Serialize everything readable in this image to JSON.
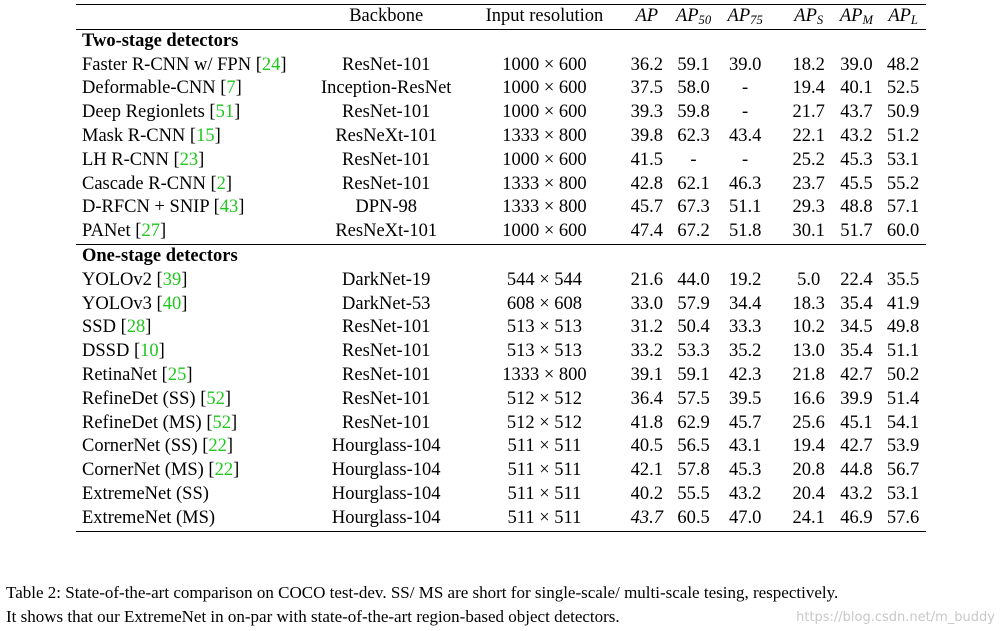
{
  "table": {
    "headers": {
      "backbone": "Backbone",
      "input_resolution": "Input resolution",
      "ap_base": "AP",
      "ap50_sub": "50",
      "ap75_sub": "75",
      "aps_sub": "S",
      "apm_sub": "M",
      "apl_sub": "L"
    },
    "sections": [
      {
        "title": "Two-stage detectors",
        "rows": [
          {
            "method": "Faster R-CNN w/ FPN",
            "cite": "24",
            "backbone": "ResNet-101",
            "resolution": "1000 × 600",
            "ap": "36.2",
            "ap50": "59.1",
            "ap75": "39.0",
            "aps": "18.2",
            "apm": "39.0",
            "apl": "48.2"
          },
          {
            "method": "Deformable-CNN",
            "cite": "7",
            "backbone": "Inception-ResNet",
            "resolution": "1000 × 600",
            "ap": "37.5",
            "ap50": "58.0",
            "ap75": "-",
            "aps": "19.4",
            "apm": "40.1",
            "apl": "52.5"
          },
          {
            "method": "Deep Regionlets",
            "cite": "51",
            "backbone": "ResNet-101",
            "resolution": "1000 × 600",
            "ap": "39.3",
            "ap50": "59.8",
            "ap75": "-",
            "aps": "21.7",
            "apm": "43.7",
            "apl": "50.9"
          },
          {
            "method": "Mask R-CNN",
            "cite": "15",
            "backbone": "ResNeXt-101",
            "resolution": "1333 × 800",
            "ap": "39.8",
            "ap50": "62.3",
            "ap75": "43.4",
            "aps": "22.1",
            "apm": "43.2",
            "apl": "51.2"
          },
          {
            "method": "LH R-CNN",
            "cite": "23",
            "backbone": "ResNet-101",
            "resolution": "1000 × 600",
            "ap": "41.5",
            "ap50": "-",
            "ap75": "-",
            "aps": "25.2",
            "apm": "45.3",
            "apl": "53.1"
          },
          {
            "method": "Cascade R-CNN",
            "cite": "2",
            "backbone": "ResNet-101",
            "resolution": "1333 × 800",
            "ap": "42.8",
            "ap50": "62.1",
            "ap75": "46.3",
            "aps": "23.7",
            "apm": "45.5",
            "apl": "55.2"
          },
          {
            "method": "D-RFCN + SNIP",
            "cite": "43",
            "backbone": "DPN-98",
            "resolution": "1333 × 800",
            "ap": "45.7",
            "ap50": "67.3",
            "ap75": "51.1",
            "aps": "29.3",
            "apm": "48.8",
            "apl": "57.1"
          },
          {
            "method": "PANet",
            "cite": "27",
            "backbone": "ResNeXt-101",
            "resolution": "1000 × 600",
            "ap": "47.4",
            "ap50": "67.2",
            "ap75": "51.8",
            "aps": "30.1",
            "apm": "51.7",
            "apl": "60.0"
          }
        ]
      },
      {
        "title": "One-stage detectors",
        "rows": [
          {
            "method": "YOLOv2",
            "cite": "39",
            "backbone": "DarkNet-19",
            "resolution": "544 × 544",
            "ap": "21.6",
            "ap50": "44.0",
            "ap75": "19.2",
            "aps": "5.0",
            "apm": "22.4",
            "apl": "35.5"
          },
          {
            "method": "YOLOv3",
            "cite": "40",
            "backbone": "DarkNet-53",
            "resolution": "608 × 608",
            "ap": "33.0",
            "ap50": "57.9",
            "ap75": "34.4",
            "aps": "18.3",
            "apm": "35.4",
            "apl": "41.9"
          },
          {
            "method": "SSD",
            "cite": "28",
            "backbone": "ResNet-101",
            "resolution": "513 × 513",
            "ap": "31.2",
            "ap50": "50.4",
            "ap75": "33.3",
            "aps": "10.2",
            "apm": "34.5",
            "apl": "49.8"
          },
          {
            "method": "DSSD",
            "cite": "10",
            "backbone": "ResNet-101",
            "resolution": "513 × 513",
            "ap": "33.2",
            "ap50": "53.3",
            "ap75": "35.2",
            "aps": "13.0",
            "apm": "35.4",
            "apl": "51.1"
          },
          {
            "method": "RetinaNet",
            "cite": "25",
            "backbone": "ResNet-101",
            "resolution": "1333 × 800",
            "ap": "39.1",
            "ap50": "59.1",
            "ap75": "42.3",
            "aps": "21.8",
            "apm": "42.7",
            "apl": "50.2"
          },
          {
            "method": "RefineDet (SS)",
            "cite": "52",
            "backbone": "ResNet-101",
            "resolution": "512 × 512",
            "ap": "36.4",
            "ap50": "57.5",
            "ap75": "39.5",
            "aps": "16.6",
            "apm": "39.9",
            "apl": "51.4"
          },
          {
            "method": "RefineDet (MS)",
            "cite": "52",
            "backbone": "ResNet-101",
            "resolution": "512 × 512",
            "ap": "41.8",
            "ap50": "62.9",
            "ap75": "45.7",
            "aps": "25.6",
            "apm": "45.1",
            "apl": "54.1"
          },
          {
            "method": "CornerNet (SS)",
            "cite": "22",
            "backbone": "Hourglass-104",
            "resolution": "511 × 511",
            "ap": "40.5",
            "ap50": "56.5",
            "ap75": "43.1",
            "aps": "19.4",
            "apm": "42.7",
            "apl": "53.9"
          },
          {
            "method": "CornerNet (MS)",
            "cite": "22",
            "backbone": "Hourglass-104",
            "resolution": "511 × 511",
            "ap": "42.1",
            "ap50": "57.8",
            "ap75": "45.3",
            "aps": "20.8",
            "apm": "44.8",
            "apl": "56.7"
          },
          {
            "method": "ExtremeNet (SS)",
            "cite": "",
            "backbone": "Hourglass-104",
            "resolution": "511 × 511",
            "ap": "40.2",
            "ap50": "55.5",
            "ap75": "43.2",
            "aps": "20.4",
            "apm": "43.2",
            "apl": "53.1"
          },
          {
            "method": "ExtremeNet (MS)",
            "cite": "",
            "backbone": "Hourglass-104",
            "resolution": "511 × 511",
            "ap": "43.7",
            "ap50": "60.5",
            "ap75": "47.0",
            "aps": "24.1",
            "apm": "46.9",
            "apl": "57.6",
            "ap_italic": true
          }
        ]
      }
    ]
  },
  "caption": {
    "line1": "Table 2: State-of-the-art comparison on COCO test-dev. SS/ MS are short for single-scale/ multi-scale tesing, respectively.",
    "line2": "It shows that our ExtremeNet in on-par with state-of-the-art region-based object detectors."
  },
  "watermark": "https://blog.csdn.net/m_buddy"
}
